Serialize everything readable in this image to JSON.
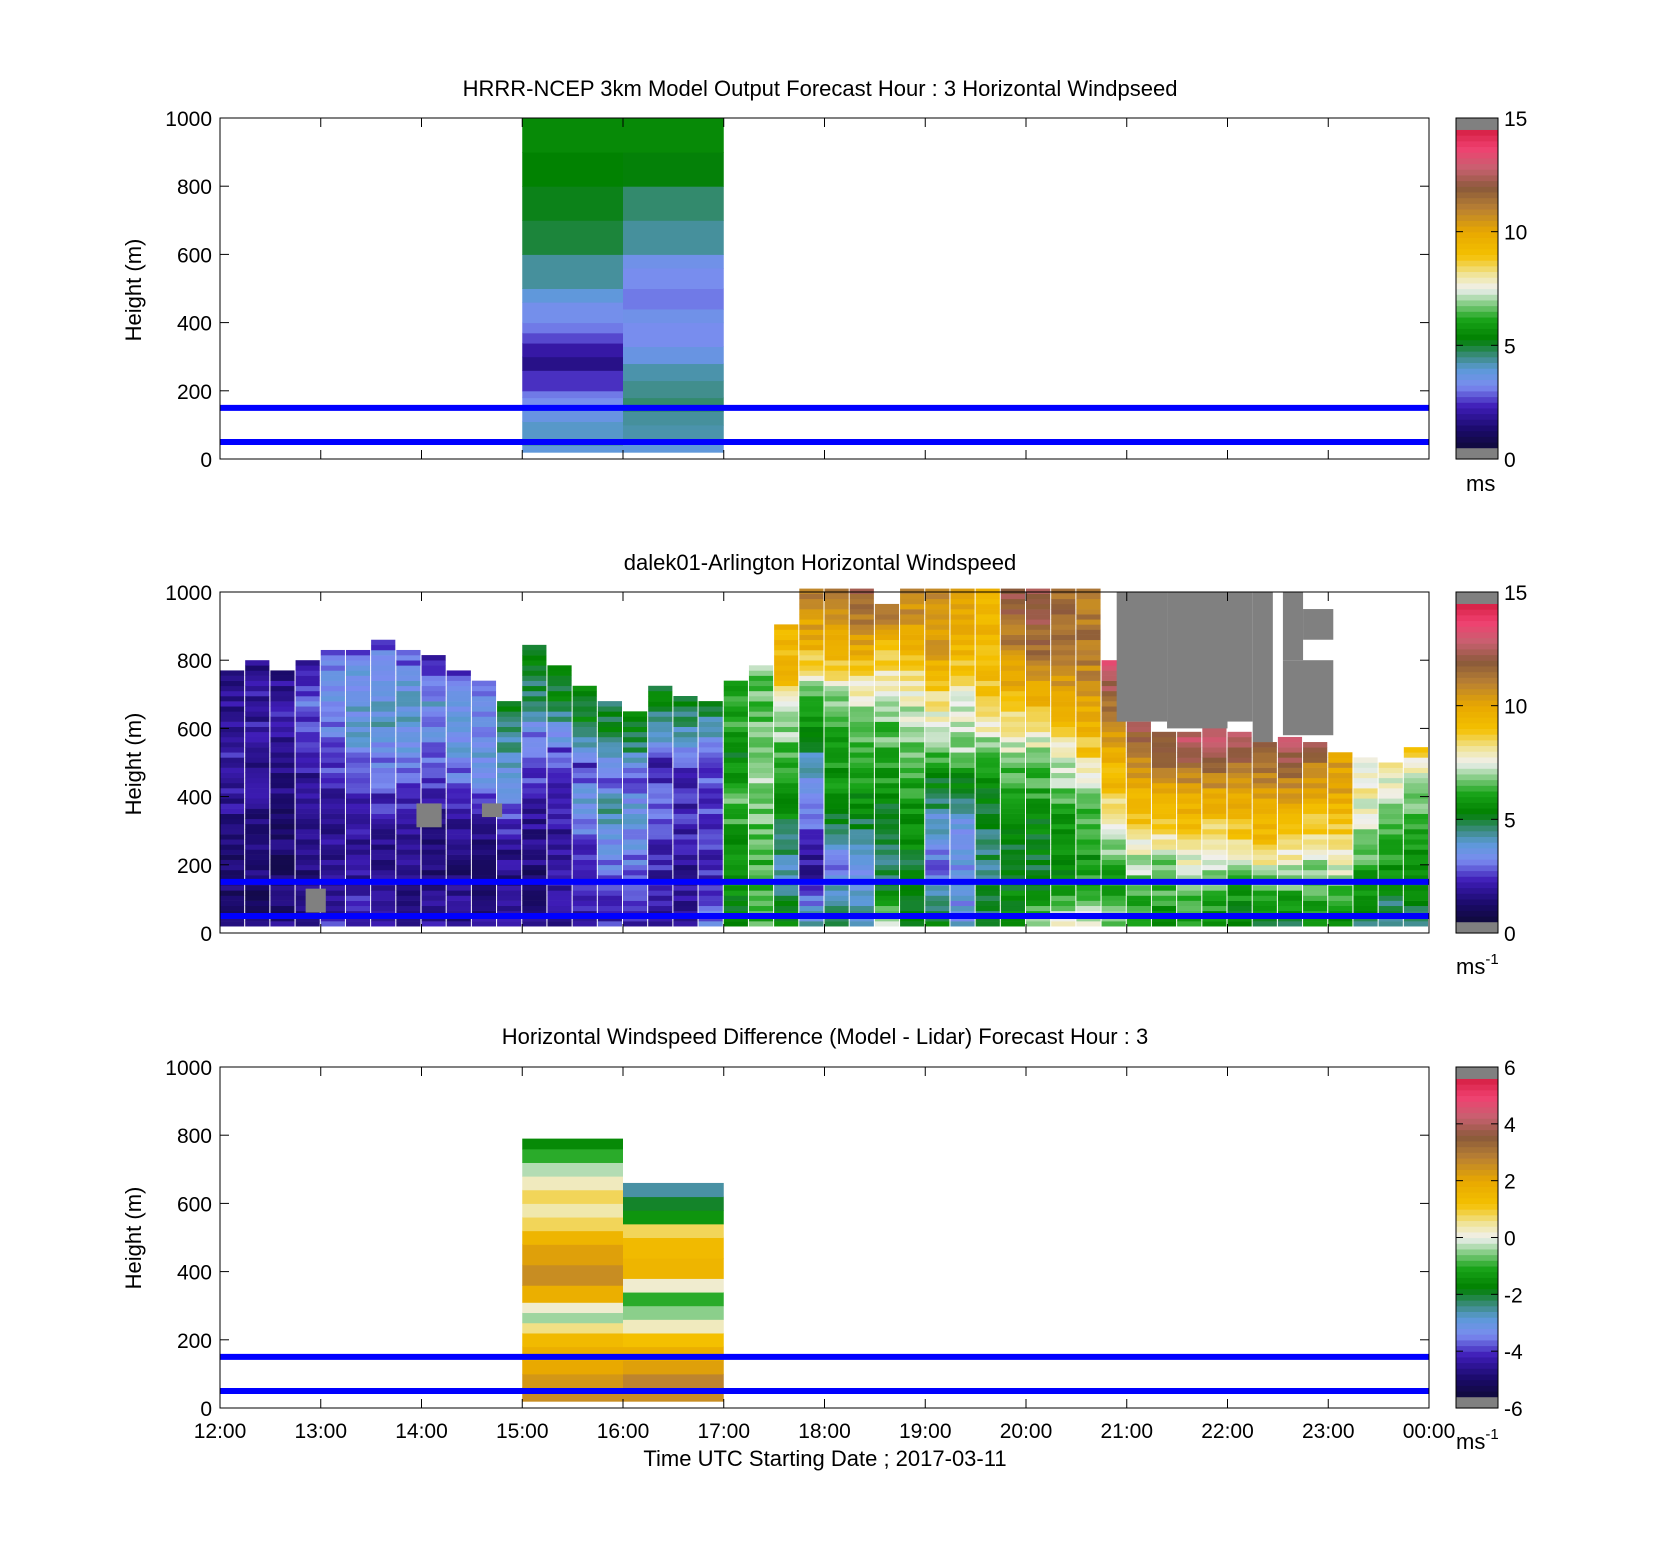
{
  "figure": {
    "xlabel": "Time UTC  Starting Date ; 2017-03-11"
  },
  "colors": {
    "ref_line": "#0000ff",
    "no_data": "#808080"
  },
  "chart_data": [
    {
      "type": "heatmap",
      "title": "HRRR-NCEP 3km Model Output   Forecast Hour : 3 Horizontal Windpseed",
      "ylabel": "Height (m)",
      "ylim": [
        0,
        1000
      ],
      "yticks": [
        "0",
        "200",
        "400",
        "600",
        "800",
        "1000"
      ],
      "xlim_hours": [
        12,
        24
      ],
      "xticks": [],
      "colorbar": {
        "min": 0,
        "max": 15,
        "ticks": [
          "0",
          "5",
          "10",
          "15"
        ],
        "unit": "ms",
        "unit_sup": ""
      },
      "ref_lines_m": [
        50,
        150
      ],
      "columns": [
        {
          "t0": 15,
          "t1": 16,
          "cells": [
            [
              20,
              40,
              3.8
            ],
            [
              40,
              60,
              4.2
            ],
            [
              60,
              110,
              4.0
            ],
            [
              110,
              150,
              3.6
            ],
            [
              150,
              180,
              3.2
            ],
            [
              180,
              200,
              3.0
            ],
            [
              200,
              260,
              2.4
            ],
            [
              260,
              300,
              1.6
            ],
            [
              300,
              340,
              2.0
            ],
            [
              340,
              370,
              2.6
            ],
            [
              370,
              400,
              3.0
            ],
            [
              400,
              460,
              3.3
            ],
            [
              460,
              500,
              3.8
            ],
            [
              500,
              600,
              4.3
            ],
            [
              600,
              700,
              4.9
            ],
            [
              700,
              800,
              5.1
            ],
            [
              800,
              900,
              5.3
            ],
            [
              900,
              1000,
              5.5
            ]
          ]
        },
        {
          "t0": 16,
          "t1": 17,
          "cells": [
            [
              20,
              50,
              3.8
            ],
            [
              50,
              100,
              4.2
            ],
            [
              100,
              140,
              4.3
            ],
            [
              140,
              180,
              4.6
            ],
            [
              180,
              230,
              4.4
            ],
            [
              230,
              280,
              4.2
            ],
            [
              280,
              330,
              3.6
            ],
            [
              330,
              400,
              3.2
            ],
            [
              400,
              440,
              3.4
            ],
            [
              440,
              500,
              3.0
            ],
            [
              500,
              560,
              3.2
            ],
            [
              560,
              600,
              3.4
            ],
            [
              600,
              700,
              4.3
            ],
            [
              700,
              800,
              4.6
            ],
            [
              800,
              900,
              5.2
            ],
            [
              900,
              1000,
              5.5
            ]
          ]
        }
      ]
    },
    {
      "type": "heatmap",
      "title": "dalek01-Arlington  Horizontal Windspeed",
      "ylabel": "Height (m)",
      "ylim": [
        0,
        1000
      ],
      "yticks": [
        "0",
        "200",
        "400",
        "600",
        "800",
        "1000"
      ],
      "xlim_hours": [
        12,
        24
      ],
      "xticks": [],
      "colorbar": {
        "min": 0,
        "max": 15,
        "ticks": [
          "0",
          "5",
          "10",
          "15"
        ],
        "unit": "ms",
        "unit_sup": "-1"
      },
      "ref_lines_m": [
        50,
        150
      ],
      "profile_interval_hours": 0.25,
      "profiles": [
        {
          "t": 12.0,
          "top": 760,
          "v": [
            1.5,
            1.2,
            1.5,
            1.8,
            2.0,
            1.8,
            1.5
          ]
        },
        {
          "t": 12.25,
          "top": 800,
          "v": [
            1.3,
            1.2,
            1.4,
            1.6,
            2.0,
            1.9,
            1.6
          ]
        },
        {
          "t": 12.5,
          "top": 760,
          "v": [
            1.5,
            1.2,
            1.3,
            1.5,
            1.9,
            2.0,
            1.7
          ]
        },
        {
          "t": 12.75,
          "top": 790,
          "v": [
            1.8,
            1.4,
            1.4,
            1.6,
            2.2,
            2.8,
            2.2
          ]
        },
        {
          "t": 13.0,
          "top": 830,
          "v": [
            2.2,
            1.6,
            1.8,
            2.2,
            3.0,
            3.5,
            2.5
          ]
        },
        {
          "t": 13.25,
          "top": 830,
          "v": [
            2.4,
            1.8,
            1.8,
            2.4,
            3.6,
            3.8,
            2.8
          ]
        },
        {
          "t": 13.5,
          "top": 850,
          "v": [
            2.2,
            1.8,
            1.9,
            2.6,
            3.8,
            4.0,
            2.6
          ]
        },
        {
          "t": 13.75,
          "top": 820,
          "v": [
            2.0,
            1.5,
            1.8,
            2.5,
            3.8,
            4.2,
            2.4
          ]
        },
        {
          "t": 14.0,
          "top": 810,
          "v": [
            1.8,
            1.3,
            1.6,
            2.2,
            3.2,
            3.6,
            2.2
          ]
        },
        {
          "t": 14.25,
          "top": 760,
          "v": [
            1.8,
            1.5,
            1.4,
            2.4,
            3.4,
            3.6,
            2.6
          ]
        },
        {
          "t": 14.5,
          "top": 730,
          "v": [
            1.6,
            1.4,
            1.5,
            2.6,
            3.6,
            3.4,
            2.8
          ]
        },
        {
          "t": 14.75,
          "top": 680,
          "v": [
            1.8,
            1.5,
            1.7,
            2.8,
            3.8,
            4.6,
            5.0
          ]
        },
        {
          "t": 15.0,
          "top": 840,
          "v": [
            1.6,
            1.4,
            1.6,
            2.4,
            3.0,
            4.8,
            5.4
          ]
        },
        {
          "t": 15.25,
          "top": 780,
          "v": [
            1.8,
            2.0,
            1.8,
            2.2,
            2.6,
            5.0,
            5.4
          ]
        },
        {
          "t": 15.5,
          "top": 720,
          "v": [
            2.0,
            2.4,
            2.6,
            3.6,
            2.4,
            5.2,
            5.2
          ]
        },
        {
          "t": 15.75,
          "top": 680,
          "v": [
            2.2,
            2.6,
            3.4,
            4.4,
            2.6,
            5.0,
            5.0
          ]
        },
        {
          "t": 16.0,
          "top": 650,
          "v": [
            2.0,
            2.4,
            3.2,
            3.8,
            2.8,
            4.8,
            5.2
          ]
        },
        {
          "t": 16.25,
          "top": 720,
          "v": [
            1.6,
            2.0,
            2.4,
            2.8,
            2.0,
            4.6,
            5.4
          ]
        },
        {
          "t": 16.5,
          "top": 690,
          "v": [
            2.0,
            1.8,
            2.0,
            2.2,
            2.2,
            4.2,
            5.2
          ]
        },
        {
          "t": 16.75,
          "top": 680,
          "v": [
            3.0,
            2.2,
            2.4,
            2.6,
            2.6,
            3.8,
            5.0
          ]
        },
        {
          "t": 17.0,
          "top": 740,
          "v": [
            5.0,
            5.6,
            5.8,
            6.6,
            5.4,
            6.2,
            5.6
          ]
        },
        {
          "t": 17.25,
          "top": 780,
          "v": [
            6.4,
            6.2,
            6.6,
            7.0,
            6.4,
            6.6,
            6.8
          ]
        },
        {
          "t": 17.5,
          "top": 900,
          "v": [
            5.8,
            4.0,
            5.2,
            6.2,
            7.0,
            9.2,
            9.6
          ]
        },
        {
          "t": 17.75,
          "top": 1000,
          "v": [
            4.2,
            1.8,
            3.0,
            4.4,
            6.4,
            9.6,
            11.2
          ]
        },
        {
          "t": 18.0,
          "top": 1000,
          "v": [
            5.4,
            3.0,
            5.4,
            5.8,
            6.8,
            9.8,
            11.6
          ]
        },
        {
          "t": 18.25,
          "top": 1000,
          "v": [
            4.0,
            3.6,
            5.2,
            6.4,
            7.2,
            10.2,
            12.2
          ]
        },
        {
          "t": 18.5,
          "top": 960,
          "v": [
            7.0,
            4.6,
            5.2,
            6.2,
            6.8,
            8.6,
            11.8
          ]
        },
        {
          "t": 18.75,
          "top": 1000,
          "v": [
            4.8,
            5.2,
            5.8,
            6.6,
            7.4,
            9.8,
            11.2
          ]
        },
        {
          "t": 19.0,
          "top": 1000,
          "v": [
            5.2,
            3.0,
            4.2,
            6.2,
            8.2,
            10.4,
            11.0
          ]
        },
        {
          "t": 19.25,
          "top": 1000,
          "v": [
            3.6,
            3.4,
            3.8,
            6.8,
            7.6,
            9.6,
            10.4
          ]
        },
        {
          "t": 19.5,
          "top": 1000,
          "v": [
            4.6,
            4.6,
            5.0,
            6.4,
            8.8,
            9.4,
            9.8
          ]
        },
        {
          "t": 19.75,
          "top": 1000,
          "v": [
            5.8,
            5.0,
            5.4,
            7.0,
            9.2,
            11.0,
            12.6
          ]
        },
        {
          "t": 20.0,
          "top": 1000,
          "v": [
            6.6,
            5.0,
            5.6,
            6.8,
            9.6,
            11.8,
            12.2
          ]
        },
        {
          "t": 20.25,
          "top": 1000,
          "v": [
            7.4,
            5.4,
            6.0,
            7.6,
            9.8,
            11.4,
            11.6
          ]
        },
        {
          "t": 20.5,
          "top": 1000,
          "v": [
            7.6,
            5.6,
            6.4,
            8.6,
            10.2,
            11.4,
            11.2
          ]
        },
        {
          "t": 20.75,
          "top": 790,
          "v": [
            6.6,
            6.0,
            7.0,
            9.0,
            10.0,
            11.4,
            13.6
          ]
        },
        {
          "t": 21.0,
          "top": 620,
          "v": [
            5.8,
            6.4,
            7.4,
            8.8,
            9.6,
            11.2,
            12.4
          ]
        },
        {
          "t": 21.25,
          "top": 580,
          "v": [
            5.6,
            6.2,
            7.0,
            8.6,
            9.8,
            11.4,
            12.6
          ]
        },
        {
          "t": 21.5,
          "top": 590,
          "v": [
            5.8,
            6.6,
            7.6,
            9.2,
            10.0,
            11.8,
            13.0
          ]
        },
        {
          "t": 21.75,
          "top": 600,
          "v": [
            5.6,
            6.2,
            7.4,
            8.8,
            10.2,
            12.0,
            13.4
          ]
        },
        {
          "t": 22.0,
          "top": 590,
          "v": [
            5.4,
            5.8,
            7.2,
            9.0,
            10.2,
            11.6,
            13.0
          ]
        },
        {
          "t": 22.25,
          "top": 560,
          "v": [
            5.2,
            6.0,
            7.8,
            9.4,
            9.8,
            11.2,
            12.6
          ]
        },
        {
          "t": 22.5,
          "top": 570,
          "v": [
            5.2,
            6.2,
            7.6,
            8.8,
            10.0,
            11.8,
            13.2
          ]
        },
        {
          "t": 22.75,
          "top": 560,
          "v": [
            5.6,
            6.4,
            7.2,
            8.6,
            9.6,
            10.8,
            12.6
          ]
        },
        {
          "t": 23.0,
          "top": 530,
          "v": [
            5.2,
            6.4,
            7.6,
            8.6,
            9.4,
            10.4,
            10.0
          ]
        },
        {
          "t": 23.25,
          "top": 510,
          "v": [
            4.6,
            5.4,
            6.2,
            7.0,
            7.6,
            8.0,
            7.8
          ]
        },
        {
          "t": 23.5,
          "top": 500,
          "v": [
            4.4,
            5.0,
            5.6,
            6.2,
            7.0,
            7.6,
            8.0
          ]
        },
        {
          "t": 23.75,
          "top": 540,
          "v": [
            4.6,
            5.2,
            5.6,
            6.2,
            6.8,
            7.6,
            8.6
          ]
        }
      ],
      "no_data_patches": [
        {
          "t0": 20.9,
          "t1": 21.4,
          "z0": 620,
          "z1": 1000
        },
        {
          "t0": 21.4,
          "t1": 22.0,
          "z0": 600,
          "z1": 1000
        },
        {
          "t0": 22.0,
          "t1": 22.25,
          "z0": 620,
          "z1": 1000
        },
        {
          "t0": 22.25,
          "t1": 22.45,
          "z0": 560,
          "z1": 1000
        },
        {
          "t0": 22.55,
          "t1": 23.05,
          "z0": 580,
          "z1": 800
        },
        {
          "t0": 22.55,
          "t1": 22.75,
          "z0": 800,
          "z1": 1000
        },
        {
          "t0": 22.75,
          "t1": 23.05,
          "z0": 860,
          "z1": 950
        },
        {
          "t0": 13.95,
          "t1": 14.2,
          "z0": 310,
          "z1": 380
        },
        {
          "t0": 12.85,
          "t1": 13.05,
          "z0": 60,
          "z1": 130
        },
        {
          "t0": 14.6,
          "t1": 14.8,
          "z0": 340,
          "z1": 380
        }
      ]
    },
    {
      "type": "heatmap",
      "title": "Horizontal Windspeed Difference (Model - Lidar) Forecast Hour : 3",
      "ylabel": "Height (m)",
      "ylim": [
        0,
        1000
      ],
      "yticks": [
        "0",
        "200",
        "400",
        "600",
        "800",
        "1000"
      ],
      "xlim_hours": [
        12,
        24
      ],
      "xticks": [
        "12:00",
        "13:00",
        "14:00",
        "15:00",
        "16:00",
        "17:00",
        "18:00",
        "19:00",
        "20:00",
        "21:00",
        "22:00",
        "23:00",
        "00:00"
      ],
      "colorbar": {
        "min": -6,
        "max": 6,
        "ticks": [
          "-6",
          "-4",
          "-2",
          "0",
          "2",
          "4",
          "6"
        ],
        "unit": "ms",
        "unit_sup": "-1"
      },
      "ref_lines_m": [
        50,
        150
      ],
      "columns": [
        {
          "t0": 15,
          "t1": 16,
          "cells": [
            [
              20,
              60,
              2.6
            ],
            [
              60,
              100,
              2.4
            ],
            [
              100,
              140,
              2.0
            ],
            [
              140,
              180,
              1.8
            ],
            [
              180,
              220,
              1.4
            ],
            [
              220,
              250,
              0.6
            ],
            [
              250,
              280,
              -0.4
            ],
            [
              280,
              310,
              0.2
            ],
            [
              310,
              360,
              1.8
            ],
            [
              360,
              420,
              2.6
            ],
            [
              420,
              480,
              2.2
            ],
            [
              480,
              520,
              1.6
            ],
            [
              520,
              560,
              0.8
            ],
            [
              560,
              600,
              0.4
            ],
            [
              600,
              640,
              0.8
            ],
            [
              640,
              680,
              0.3
            ],
            [
              680,
              720,
              -0.3
            ],
            [
              720,
              760,
              -1.0
            ],
            [
              760,
              790,
              -1.6
            ]
          ]
        },
        {
          "t0": 16,
          "t1": 17,
          "cells": [
            [
              20,
              60,
              2.6
            ],
            [
              60,
              100,
              2.8
            ],
            [
              100,
              140,
              2.2
            ],
            [
              140,
              180,
              1.8
            ],
            [
              180,
              220,
              1.2
            ],
            [
              220,
              260,
              0.3
            ],
            [
              260,
              300,
              -0.5
            ],
            [
              300,
              340,
              -1.0
            ],
            [
              340,
              380,
              0.2
            ],
            [
              380,
              440,
              1.6
            ],
            [
              440,
              500,
              1.4
            ],
            [
              500,
              540,
              0.8
            ],
            [
              540,
              580,
              -1.4
            ],
            [
              580,
              620,
              -2.0
            ],
            [
              620,
              660,
              -2.6
            ]
          ]
        }
      ]
    }
  ]
}
